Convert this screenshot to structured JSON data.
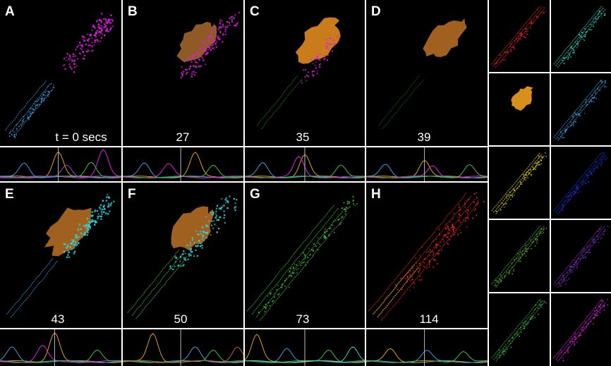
{
  "panels": [
    {
      "label": "A",
      "time": "t = 0 secs"
    },
    {
      "label": "B",
      "time": "27"
    },
    {
      "label": "C",
      "time": "35"
    },
    {
      "label": "D",
      "time": "39"
    },
    {
      "label": "E",
      "time": "43"
    },
    {
      "label": "F",
      "time": "50"
    },
    {
      "label": "G",
      "time": "73"
    },
    {
      "label": "H",
      "time": "114"
    }
  ],
  "colors": {
    "magenta": "#e020e0",
    "cyan": "#30d8e0",
    "orange": "#e08a20",
    "brown": "#a0642a",
    "green": "#40c040",
    "blue": "#3aa0e0",
    "red": "#e02a20",
    "yellow": "#e0d020",
    "darkblue": "#2030e0",
    "purple": "#8030d0"
  },
  "thumbnails": [
    {
      "icon": "red-channel-cell-icon",
      "color": "#e02a20"
    },
    {
      "icon": "cyan-channel-cell-icon",
      "color": "#30d8c8"
    },
    {
      "icon": "orange-channel-blob-icon",
      "color": "#f0a020"
    },
    {
      "icon": "blue-channel-cell-icon",
      "color": "#3aa0e0"
    },
    {
      "icon": "yellow-channel-cell-icon",
      "color": "#e0d020"
    },
    {
      "icon": "darkblue-channel-cell-icon",
      "color": "#2030e0"
    },
    {
      "icon": "green-channel-cell-icon",
      "color": "#58b030"
    },
    {
      "icon": "purple-channel-cell-icon",
      "color": "#8a30d0"
    },
    {
      "icon": "lightgreen-channel-cell-icon",
      "color": "#30b040"
    },
    {
      "icon": "magenta-channel-cell-icon",
      "color": "#e020e0"
    }
  ],
  "trace_colors": [
    "#e0a020",
    "#3aa0e0",
    "#40c040",
    "#e020e0",
    "#a040e0",
    "#2a60e0",
    "#c06030",
    "#30d8c8"
  ]
}
